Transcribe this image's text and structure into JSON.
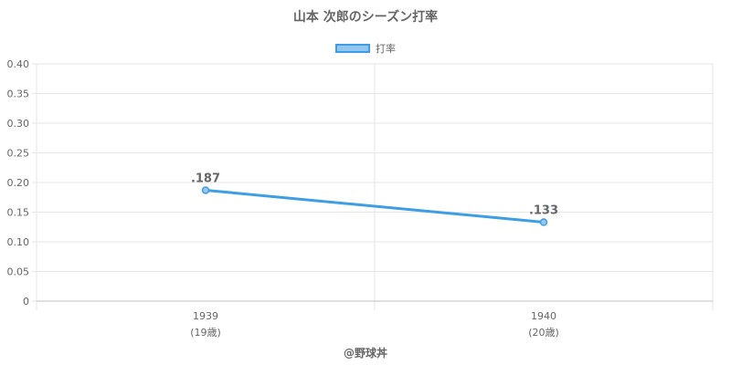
{
  "chart_data": {
    "type": "line",
    "title": "山本 次郎のシーズン打率",
    "categories": [
      "1939",
      "1940"
    ],
    "category_sublabels": [
      "(19歳)",
      "(20歳)"
    ],
    "series": [
      {
        "name": "打率",
        "values": [
          0.187,
          0.133
        ],
        "data_labels": [
          ".187",
          ".133"
        ],
        "color": "#3d9ee4"
      }
    ],
    "ylim": [
      0,
      0.4
    ],
    "yticks": [
      0,
      0.05,
      0.1,
      0.15,
      0.2,
      0.25,
      0.3,
      0.35,
      0.4
    ],
    "ytick_labels": [
      "0",
      "0.05",
      "0.10",
      "0.15",
      "0.20",
      "0.25",
      "0.30",
      "0.35",
      "0.40"
    ],
    "grid": true,
    "legend_position": "top"
  },
  "credit": "@野球丼",
  "colors": {
    "line": "#3d9ee4",
    "legend_fill": "#93c6f0",
    "grid": "#e6e6e6",
    "text": "#666666"
  }
}
